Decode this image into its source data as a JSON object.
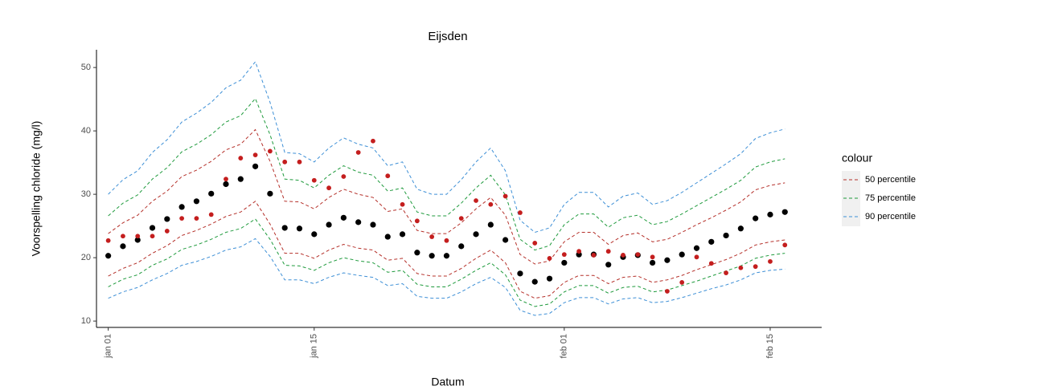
{
  "chart_data": {
    "type": "line",
    "title": "Eijsden",
    "x_label": "Datum",
    "y_label": "Voorspelling chloride (mg/l)",
    "x": [
      0,
      1,
      2,
      3,
      4,
      5,
      6,
      7,
      8,
      9,
      10,
      11,
      12,
      13,
      14,
      15,
      16,
      17,
      18,
      19,
      20,
      21,
      22,
      23,
      24,
      25,
      26,
      27,
      28,
      29,
      30,
      31,
      32,
      33,
      34,
      35,
      36,
      37,
      38,
      39,
      40,
      41,
      42,
      43,
      44,
      45,
      46
    ],
    "xlim": [
      -0.8,
      48.5
    ],
    "xticks": [
      {
        "value": 0,
        "label": "jan 01"
      },
      {
        "value": 14,
        "label": "jan 15"
      },
      {
        "value": 31,
        "label": "feb 01"
      },
      {
        "value": 45,
        "label": "feb 15"
      }
    ],
    "ylim": [
      9,
      52.8
    ],
    "yticks": [
      10,
      20,
      30,
      40,
      50
    ],
    "legend_title": "colour",
    "legend": "right",
    "series": [
      {
        "name": "50 percentile",
        "color": "#b5302a",
        "upper": [
          23.8,
          25.5,
          26.7,
          28.9,
          30.5,
          32.8,
          33.8,
          35.2,
          37.0,
          37.9,
          40.2,
          35.2,
          28.9,
          28.8,
          27.7,
          29.5,
          30.8,
          30.0,
          29.5,
          27.3,
          27.7,
          24.3,
          23.8,
          23.8,
          25.5,
          27.7,
          29.5,
          26.7,
          20.5,
          19.0,
          19.5,
          22.5,
          24.0,
          24.0,
          22.1,
          23.5,
          23.9,
          22.5,
          22.9,
          24.0,
          25.2,
          26.3,
          27.5,
          28.8,
          30.7,
          31.4,
          31.8
        ],
        "lower": [
          17.1,
          18.3,
          19.2,
          20.7,
          21.9,
          23.5,
          24.3,
          25.3,
          26.5,
          27.2,
          28.9,
          25.3,
          20.7,
          20.7,
          19.9,
          21.2,
          22.1,
          21.5,
          21.2,
          19.6,
          19.9,
          17.5,
          17.1,
          17.1,
          18.3,
          19.9,
          21.2,
          19.2,
          14.7,
          13.6,
          14.0,
          16.1,
          17.2,
          17.2,
          15.9,
          16.9,
          17.1,
          16.1,
          16.5,
          17.2,
          18.1,
          18.9,
          19.7,
          20.7,
          22.0,
          22.5,
          22.8
        ]
      },
      {
        "name": "75 percentile",
        "color": "#1e9a3c",
        "upper": [
          26.6,
          28.6,
          29.9,
          32.4,
          34.2,
          36.7,
          37.9,
          39.4,
          41.4,
          42.4,
          45.1,
          39.4,
          32.4,
          32.2,
          31.0,
          33.0,
          34.5,
          33.5,
          33.0,
          30.5,
          31.0,
          27.2,
          26.6,
          26.6,
          28.6,
          31.0,
          33.0,
          29.9,
          22.9,
          21.2,
          21.9,
          25.2,
          26.9,
          26.9,
          24.8,
          26.3,
          26.7,
          25.2,
          25.7,
          26.9,
          28.2,
          29.5,
          30.8,
          32.2,
          34.3,
          35.1,
          35.6
        ],
        "lower": [
          15.4,
          16.6,
          17.3,
          18.8,
          19.8,
          21.3,
          22.0,
          22.9,
          24.0,
          24.6,
          26.1,
          22.9,
          18.8,
          18.7,
          18.0,
          19.2,
          20.0,
          19.5,
          19.2,
          17.7,
          18.0,
          15.8,
          15.4,
          15.4,
          16.6,
          18.0,
          19.2,
          17.3,
          13.3,
          12.3,
          12.7,
          14.6,
          15.6,
          15.6,
          14.4,
          15.3,
          15.5,
          14.6,
          14.9,
          15.6,
          16.3,
          17.1,
          17.9,
          18.7,
          19.9,
          20.4,
          20.7
        ]
      },
      {
        "name": "90 percentile",
        "color": "#3d8fd6",
        "upper": [
          30.0,
          32.3,
          33.7,
          36.6,
          38.6,
          41.4,
          42.8,
          44.5,
          46.8,
          48.0,
          50.9,
          44.5,
          36.6,
          36.4,
          35.1,
          37.3,
          38.9,
          37.9,
          37.3,
          34.5,
          35.1,
          30.8,
          30.0,
          30.0,
          32.3,
          35.1,
          37.3,
          33.7,
          25.9,
          24.0,
          24.7,
          28.4,
          30.3,
          30.3,
          28.0,
          29.7,
          30.2,
          28.4,
          29.0,
          30.3,
          31.8,
          33.3,
          34.8,
          36.4,
          38.8,
          39.7,
          40.3
        ],
        "lower": [
          13.6,
          14.6,
          15.3,
          16.5,
          17.5,
          18.8,
          19.4,
          20.2,
          21.2,
          21.7,
          23.0,
          20.2,
          16.5,
          16.5,
          15.9,
          16.9,
          17.6,
          17.2,
          16.9,
          15.6,
          15.9,
          13.9,
          13.6,
          13.6,
          14.6,
          15.9,
          16.9,
          15.3,
          11.7,
          10.9,
          11.2,
          12.9,
          13.7,
          13.7,
          12.7,
          13.5,
          13.7,
          12.9,
          13.1,
          13.7,
          14.4,
          15.1,
          15.7,
          16.5,
          17.6,
          18.0,
          18.2
        ]
      }
    ],
    "points": [
      {
        "color": "#000000",
        "values": [
          20.3,
          21.8,
          22.8,
          24.7,
          26.1,
          28.0,
          28.9,
          30.1,
          31.6,
          32.4,
          34.4,
          30.1,
          24.7,
          24.6,
          23.7,
          25.2,
          26.3,
          25.6,
          25.2,
          23.3,
          23.7,
          20.8,
          20.3,
          20.3,
          21.8,
          23.7,
          25.2,
          22.8,
          17.5,
          16.2,
          16.7,
          19.2,
          20.5,
          20.5,
          18.9,
          20.1,
          20.4,
          19.2,
          19.6,
          20.5,
          21.5,
          22.5,
          23.5,
          24.6,
          26.2,
          26.8,
          27.2
        ]
      },
      {
        "color": "#c41e1e",
        "values": [
          22.7,
          23.4,
          23.4,
          23.4,
          24.2,
          26.2,
          26.2,
          26.8,
          32.4,
          35.7,
          36.2,
          36.8,
          35.1,
          35.1,
          32.2,
          31.0,
          32.8,
          36.6,
          38.4,
          32.9,
          28.4,
          25.8,
          23.3,
          22.7,
          26.2,
          29.0,
          28.4,
          29.7,
          27.1,
          22.3,
          19.9,
          20.5,
          21.0,
          20.4,
          21.0,
          20.4,
          20.5,
          20.1,
          14.7,
          16.1,
          20.1,
          19.1,
          17.6,
          18.4,
          18.6,
          19.4,
          22.0
        ]
      }
    ]
  }
}
